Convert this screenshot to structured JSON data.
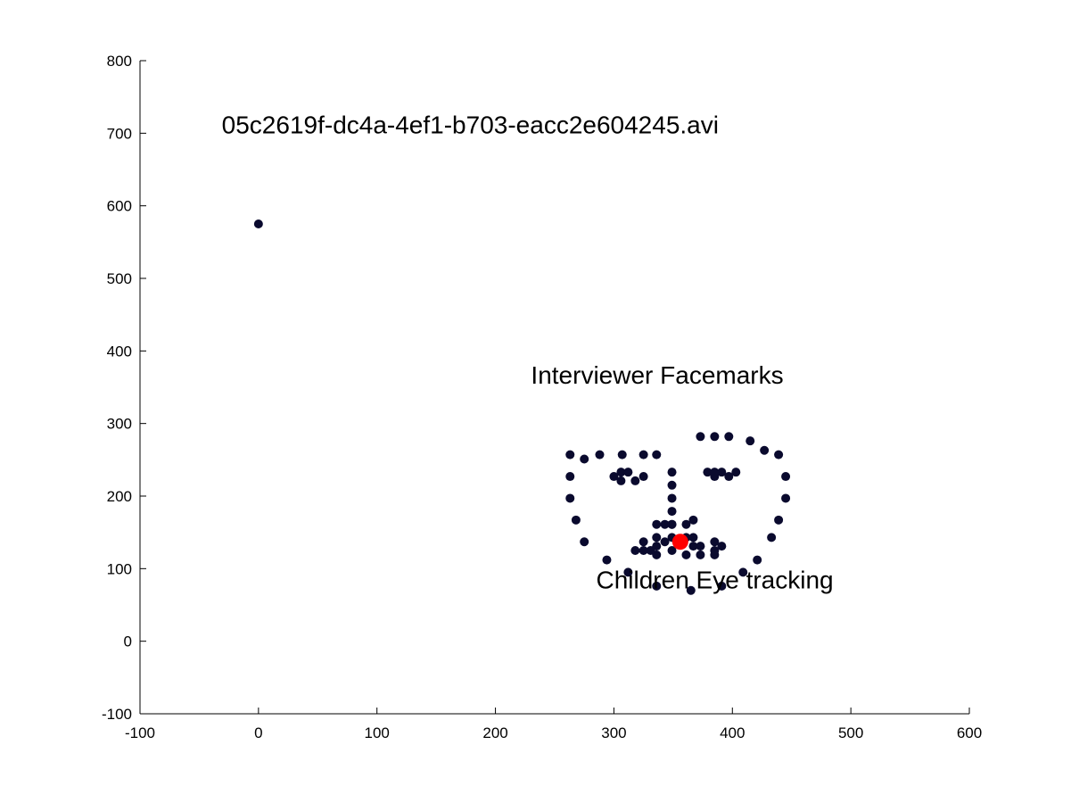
{
  "chart_data": {
    "type": "scatter",
    "title": "",
    "xlabel": "",
    "ylabel": "",
    "xlim": [
      -100,
      600
    ],
    "ylim": [
      -100,
      800
    ],
    "xticks": [
      -100,
      0,
      100,
      200,
      300,
      400,
      500,
      600
    ],
    "yticks": [
      -100,
      0,
      100,
      200,
      300,
      400,
      500,
      600,
      700,
      800
    ],
    "grid": false,
    "annotations": [
      {
        "text": "05c2619f-dc4a-4ef1-b703-eacc2e604245.avi",
        "x": -31,
        "y": 700
      },
      {
        "text": "Interviewer Facemarks",
        "x": 230,
        "y": 355
      },
      {
        "text": "Children Eye tracking",
        "x": 285,
        "y": 73
      }
    ],
    "series": [
      {
        "color": "#0a0a2e",
        "marker": "circle",
        "points": [
          [
            0,
            575
          ],
          [
            263,
            257
          ],
          [
            263,
            227
          ],
          [
            263,
            197
          ],
          [
            268,
            167
          ],
          [
            275,
            137
          ],
          [
            294,
            112
          ],
          [
            312,
            95
          ],
          [
            336,
            76
          ],
          [
            365,
            70
          ],
          [
            391,
            76
          ],
          [
            409,
            95
          ],
          [
            421,
            112
          ],
          [
            433,
            143
          ],
          [
            439,
            167
          ],
          [
            445,
            197
          ],
          [
            445,
            227
          ],
          [
            439,
            257
          ],
          [
            275,
            251
          ],
          [
            288,
            257
          ],
          [
            307,
            257
          ],
          [
            325,
            257
          ],
          [
            336,
            257
          ],
          [
            373,
            282
          ],
          [
            385,
            282
          ],
          [
            397,
            282
          ],
          [
            415,
            276
          ],
          [
            427,
            263
          ],
          [
            349,
            233
          ],
          [
            349,
            215
          ],
          [
            349,
            197
          ],
          [
            349,
            179
          ],
          [
            349,
            161
          ],
          [
            336,
            161
          ],
          [
            343,
            161
          ],
          [
            349,
            161
          ],
          [
            361,
            161
          ],
          [
            367,
            167
          ],
          [
            300,
            227
          ],
          [
            306,
            233
          ],
          [
            312,
            233
          ],
          [
            318,
            221
          ],
          [
            325,
            227
          ],
          [
            306,
            221
          ],
          [
            379,
            233
          ],
          [
            385,
            227
          ],
          [
            391,
            233
          ],
          [
            397,
            227
          ],
          [
            403,
            233
          ],
          [
            385,
            233
          ],
          [
            318,
            125
          ],
          [
            325,
            137
          ],
          [
            325,
            125
          ],
          [
            331,
            125
          ],
          [
            336,
            131
          ],
          [
            336,
            143
          ],
          [
            343,
            137
          ],
          [
            349,
            143
          ],
          [
            361,
            143
          ],
          [
            367,
            143
          ],
          [
            373,
            131
          ],
          [
            385,
            137
          ],
          [
            391,
            131
          ],
          [
            385,
            119
          ],
          [
            373,
            119
          ],
          [
            361,
            119
          ],
          [
            349,
            125
          ],
          [
            336,
            119
          ],
          [
            367,
            131
          ],
          [
            385,
            125
          ]
        ]
      },
      {
        "color": "#ff0000",
        "marker": "circle",
        "points": [
          [
            356,
            137
          ]
        ]
      }
    ]
  }
}
